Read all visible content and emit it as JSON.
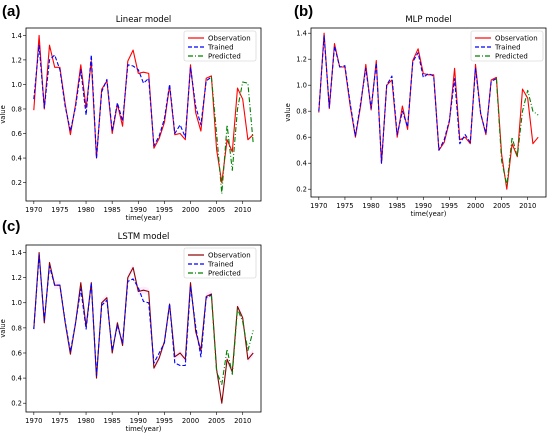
{
  "panel_labels": [
    "(a)",
    "(b)",
    "(c)"
  ],
  "colors": {
    "observation": "#ff0000",
    "trained": "#0000ff",
    "predicted": "#008000",
    "band": "#ff00ff"
  },
  "chart_data": [
    {
      "type": "line",
      "title": "Linear model",
      "xlabel": "time(year)",
      "ylabel": "value",
      "xlim": [
        1968.5,
        2013.5
      ],
      "ylim": [
        0.05,
        1.46
      ],
      "xticks": [
        1970,
        1975,
        1980,
        1985,
        1990,
        1995,
        2000,
        2005,
        2010
      ],
      "yticks": [
        0.2,
        0.4,
        0.6,
        0.8,
        1.0,
        1.2,
        1.4
      ],
      "grid": false,
      "legend_position": "top-right",
      "series": [
        {
          "name": "Observation",
          "style": "solid",
          "color": "#ff0000",
          "x": [
            1970,
            1971,
            1972,
            1973,
            1974,
            1975,
            1976,
            1977,
            1978,
            1979,
            1980,
            1981,
            1982,
            1983,
            1984,
            1985,
            1986,
            1987,
            1988,
            1989,
            1990,
            1991,
            1992,
            1993,
            1994,
            1995,
            1996,
            1997,
            1998,
            1999,
            2000,
            2001,
            2002,
            2003,
            2004,
            2005,
            2006,
            2007,
            2008,
            2009,
            2010,
            2011,
            2012
          ],
          "values": [
            0.79,
            1.4,
            0.8,
            1.32,
            1.14,
            1.14,
            0.84,
            0.59,
            0.84,
            1.16,
            0.81,
            1.19,
            0.4,
            0.96,
            1.03,
            0.6,
            0.84,
            0.66,
            1.19,
            1.28,
            1.09,
            1.1,
            1.09,
            0.48,
            0.56,
            0.69,
            0.99,
            0.59,
            0.6,
            0.55,
            1.16,
            0.77,
            0.62,
            1.05,
            1.07,
            0.47,
            0.2,
            0.55,
            0.45,
            0.97,
            0.88,
            0.55,
            0.59
          ]
        },
        {
          "name": "Trained",
          "style": "dashed",
          "color": "#0000ff",
          "x": [
            1970,
            1971,
            1972,
            1973,
            1974,
            1975,
            1976,
            1977,
            1978,
            1979,
            1980,
            1981,
            1982,
            1983,
            1984,
            1985,
            1986,
            1987,
            1988,
            1989,
            1990,
            1991,
            1992,
            1993,
            1994,
            1995,
            1996,
            1997,
            1998,
            1999,
            2000,
            2001,
            2002,
            2003,
            2004
          ],
          "values": [
            0.88,
            1.32,
            0.81,
            1.2,
            1.24,
            1.12,
            0.82,
            0.62,
            0.82,
            1.12,
            0.75,
            1.24,
            0.4,
            0.94,
            1.04,
            0.62,
            0.85,
            0.7,
            1.16,
            1.15,
            1.12,
            1.01,
            1.05,
            0.5,
            0.58,
            0.72,
            1.0,
            0.6,
            0.67,
            0.57,
            1.14,
            0.82,
            0.67,
            1.03,
            1.06
          ]
        },
        {
          "name": "Predicted",
          "style": "dashdot",
          "color": "#008000",
          "x": [
            2004,
            2005,
            2006,
            2007,
            2008,
            2009,
            2010,
            2011,
            2012
          ],
          "values": [
            1.06,
            0.6,
            0.11,
            0.67,
            0.3,
            0.8,
            1.02,
            1.01,
            0.52
          ]
        }
      ]
    },
    {
      "type": "line",
      "title": "MLP model",
      "xlabel": "time(year)",
      "ylabel": "value",
      "xlim": [
        1968.5,
        2013.5
      ],
      "ylim": [
        0.14,
        1.44
      ],
      "xticks": [
        1970,
        1975,
        1980,
        1985,
        1990,
        1995,
        2000,
        2005,
        2010
      ],
      "yticks": [
        0.2,
        0.4,
        0.6,
        0.8,
        1.0,
        1.2,
        1.4
      ],
      "grid": false,
      "legend_position": "top-right",
      "series": [
        {
          "name": "Observation",
          "style": "solid",
          "color": "#ff0000",
          "x": [
            1970,
            1971,
            1972,
            1973,
            1974,
            1975,
            1976,
            1977,
            1978,
            1979,
            1980,
            1981,
            1982,
            1983,
            1984,
            1985,
            1986,
            1987,
            1988,
            1989,
            1990,
            1991,
            1992,
            1993,
            1994,
            1995,
            1996,
            1997,
            1998,
            1999,
            2000,
            2001,
            2002,
            2003,
            2004,
            2005,
            2006,
            2007,
            2008,
            2009,
            2010,
            2011,
            2012
          ],
          "values": [
            0.79,
            1.4,
            0.82,
            1.32,
            1.14,
            1.14,
            0.84,
            0.6,
            0.84,
            1.16,
            0.81,
            1.19,
            0.4,
            1.0,
            1.04,
            0.6,
            0.84,
            0.66,
            1.19,
            1.28,
            1.09,
            1.08,
            1.08,
            0.5,
            0.56,
            0.72,
            1.13,
            0.58,
            0.6,
            0.55,
            1.16,
            0.78,
            0.62,
            1.04,
            1.06,
            0.47,
            0.2,
            0.55,
            0.45,
            0.97,
            0.9,
            0.55,
            0.6
          ]
        },
        {
          "name": "Trained",
          "style": "dashed",
          "color": "#0000ff",
          "x": [
            1970,
            1971,
            1972,
            1973,
            1974,
            1975,
            1976,
            1977,
            1978,
            1979,
            1980,
            1981,
            1982,
            1983,
            1984,
            1985,
            1986,
            1987,
            1988,
            1989,
            1990,
            1991,
            1992,
            1993,
            1994,
            1995,
            1996,
            1997,
            1998,
            1999,
            2000,
            2001,
            2002,
            2003,
            2004
          ],
          "values": [
            0.8,
            1.38,
            0.83,
            1.3,
            1.14,
            1.15,
            0.86,
            0.61,
            0.86,
            1.13,
            0.82,
            1.17,
            0.4,
            1.0,
            1.07,
            0.62,
            0.8,
            0.68,
            1.18,
            1.25,
            1.06,
            1.09,
            1.07,
            0.5,
            0.58,
            0.73,
            1.05,
            0.55,
            0.62,
            0.56,
            1.13,
            0.78,
            0.63,
            1.03,
            1.05
          ]
        },
        {
          "name": "Predicted",
          "style": "dashdot",
          "color": "#008000",
          "x": [
            2004,
            2005,
            2006,
            2007,
            2008,
            2009,
            2010,
            2011,
            2012
          ],
          "values": [
            1.05,
            0.42,
            0.23,
            0.6,
            0.45,
            0.8,
            0.96,
            0.8,
            0.77
          ]
        }
      ]
    },
    {
      "type": "line",
      "title": "LSTM model",
      "xlabel": "time(year)",
      "ylabel": "value",
      "xlim": [
        1968.5,
        2013.5
      ],
      "ylim": [
        0.13,
        1.46
      ],
      "xticks": [
        1970,
        1975,
        1980,
        1985,
        1990,
        1995,
        2000,
        2005,
        2010
      ],
      "yticks": [
        0.2,
        0.4,
        0.6,
        0.8,
        1.0,
        1.2,
        1.4
      ],
      "grid": false,
      "legend_position": "top-right",
      "series": [
        {
          "name": "Observation",
          "style": "solid",
          "color": "#8b0000",
          "x": [
            1970,
            1971,
            1972,
            1973,
            1974,
            1975,
            1976,
            1977,
            1978,
            1979,
            1980,
            1981,
            1982,
            1983,
            1984,
            1985,
            1986,
            1987,
            1988,
            1989,
            1990,
            1991,
            1992,
            1993,
            1994,
            1995,
            1996,
            1997,
            1998,
            1999,
            2000,
            2001,
            2002,
            2003,
            2004,
            2005,
            2006,
            2007,
            2008,
            2009,
            2010,
            2011,
            2012
          ],
          "values": [
            0.79,
            1.4,
            0.84,
            1.32,
            1.14,
            1.14,
            0.84,
            0.59,
            0.84,
            1.16,
            0.81,
            1.16,
            0.4,
            1.0,
            1.04,
            0.6,
            0.84,
            0.66,
            1.2,
            1.28,
            1.09,
            1.1,
            1.09,
            0.48,
            0.56,
            0.69,
            0.99,
            0.57,
            0.6,
            0.55,
            1.16,
            0.77,
            0.62,
            1.05,
            1.07,
            0.47,
            0.2,
            0.55,
            0.45,
            0.97,
            0.88,
            0.55,
            0.6
          ]
        },
        {
          "name": "Trained",
          "style": "dashed",
          "color": "#0000ff",
          "x": [
            1970,
            1971,
            1972,
            1973,
            1974,
            1975,
            1976,
            1977,
            1978,
            1979,
            1980,
            1981,
            1982,
            1983,
            1984,
            1985,
            1986,
            1987,
            1988,
            1989,
            1990,
            1991,
            1992,
            1993,
            1994,
            1995,
            1996,
            1997,
            1998,
            1999,
            2000,
            2001,
            2002,
            2003,
            2004
          ],
          "values": [
            0.79,
            1.38,
            0.86,
            1.29,
            1.14,
            1.14,
            0.85,
            0.61,
            0.84,
            1.11,
            0.79,
            1.16,
            0.42,
            0.98,
            1.02,
            0.62,
            0.82,
            0.68,
            1.17,
            1.19,
            1.12,
            1.01,
            1.0,
            0.52,
            0.6,
            0.68,
            0.99,
            0.52,
            0.5,
            0.5,
            1.13,
            0.81,
            0.57,
            1.04,
            1.06
          ]
        },
        {
          "name": "Predicted",
          "style": "dashdot",
          "color": "#008000",
          "x": [
            2004,
            2005,
            2006,
            2007,
            2008,
            2009,
            2010,
            2011,
            2012
          ],
          "values": [
            1.06,
            0.45,
            0.35,
            0.63,
            0.43,
            0.95,
            0.85,
            0.62,
            0.78
          ]
        }
      ]
    }
  ]
}
